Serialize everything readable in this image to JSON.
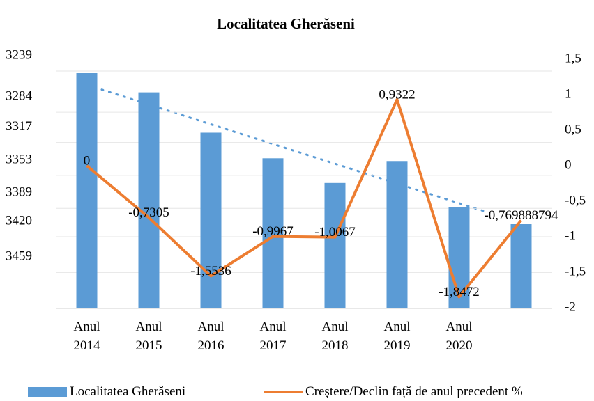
{
  "chart_data": {
    "type": "bar_line",
    "title": "Localitatea Gherăseni",
    "categories": [
      "Anul 2014",
      "Anul 2015",
      "Anul 2016",
      "Anul 2017",
      "Anul 2018",
      "Anul 2019",
      "Anul 2020",
      null
    ],
    "series": [
      {
        "name": "Localitatea Gherăseni",
        "type": "bar",
        "color": "#5b9bd5",
        "values": [
          3258,
          3279,
          3323,
          3351,
          3378,
          3354,
          3404,
          3423
        ]
      },
      {
        "name": "Creștere/Declin față de anul precedent %",
        "type": "line",
        "axis": "y2",
        "color": "#ed7d31",
        "values": [
          0,
          -0.7305,
          -1.5536,
          -0.9967,
          -1.0067,
          0.9322,
          -1.8472,
          -0.769888794
        ],
        "value_labels": [
          "0",
          "-0,7305",
          "-1,5536",
          "-0,9967",
          "-1,0067",
          "0,9322",
          "-1,8472",
          "-0,769888794"
        ]
      }
    ],
    "ylim": [
      3515,
      3239
    ],
    "yticks": [
      3239,
      3284,
      3317,
      3353,
      3389,
      3420,
      3459
    ],
    "y2lim": [
      -2,
      1.5
    ],
    "y2ticks": [
      {
        "value": 1.5,
        "label": "1,5"
      },
      1,
      {
        "value": 0.5,
        "label": "0,5"
      },
      0,
      {
        "value": -0.5,
        "label": "-0,5"
      },
      -1,
      {
        "value": -1.5,
        "label": "-1,5"
      },
      -2
    ],
    "grid": true
  }
}
